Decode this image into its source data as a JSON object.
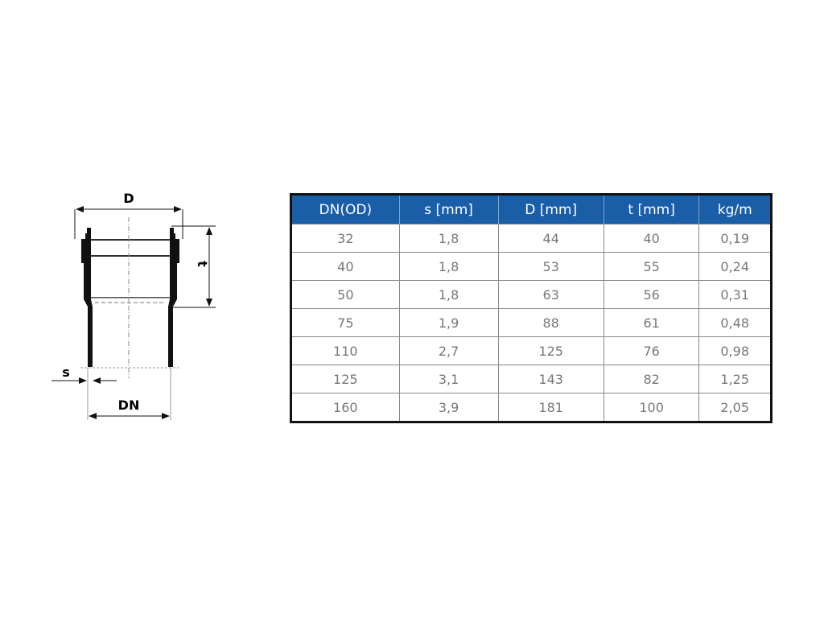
{
  "diagram": {
    "label_D": "D",
    "label_t": "t",
    "label_s": "s",
    "label_DN": "DN"
  },
  "table": {
    "header_color": "#1b5ea8",
    "columns": [
      "DN(OD)",
      "s [mm]",
      "D [mm]",
      "t [mm]",
      "kg/m"
    ],
    "rows": [
      [
        "32",
        "1,8",
        "44",
        "40",
        "0,19"
      ],
      [
        "40",
        "1,8",
        "53",
        "55",
        "0,24"
      ],
      [
        "50",
        "1,8",
        "63",
        "56",
        "0,31"
      ],
      [
        "75",
        "1,9",
        "88",
        "61",
        "0,48"
      ],
      [
        "110",
        "2,7",
        "125",
        "76",
        "0,98"
      ],
      [
        "125",
        "3,1",
        "143",
        "82",
        "1,25"
      ],
      [
        "160",
        "3,9",
        "181",
        "100",
        "2,05"
      ]
    ]
  }
}
